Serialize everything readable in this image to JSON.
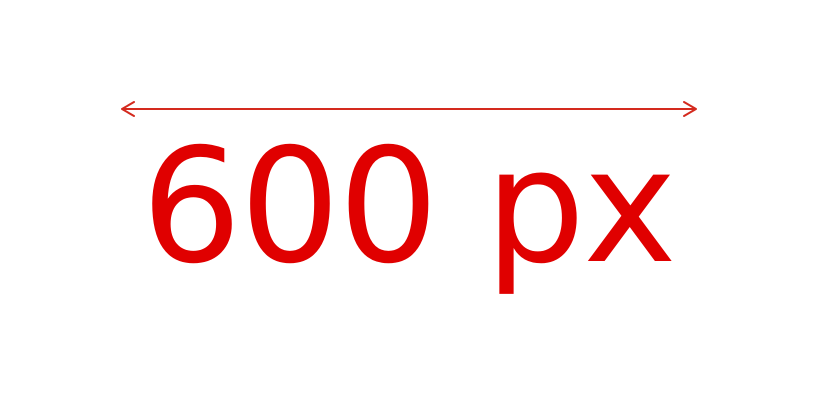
{
  "label": "600 px",
  "colors": {
    "accent": "#e00000",
    "arrow": "#d42a1e",
    "background": "#ffffff"
  },
  "icons": {
    "arrow": "double-headed-arrow-icon"
  }
}
